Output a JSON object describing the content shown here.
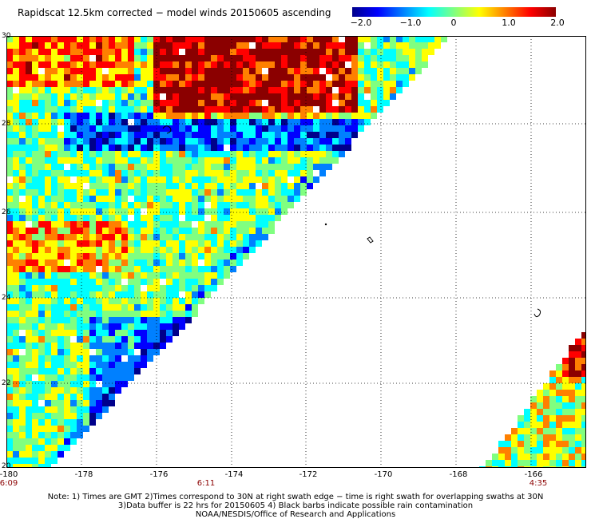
{
  "title": "Rapidscat 12.5km corrected − model winds 20150605 ascending",
  "colorbar": {
    "labels": [
      "−2.0",
      "−1.0",
      "0",
      "1.0",
      "2.0"
    ],
    "values": [
      -2.0,
      -1.0,
      0,
      1.0,
      2.0
    ],
    "colors": [
      "#00008b",
      "#0000ff",
      "#0080ff",
      "#00ffff",
      "#80ff80",
      "#ffff00",
      "#ff8000",
      "#ff0000",
      "#8b0000"
    ]
  },
  "map": {
    "lon_range": [
      -180,
      -164.5
    ],
    "lat_range": [
      20,
      30
    ],
    "x_tick_labels": [
      "-180",
      "-178",
      "-176",
      "-174",
      "-172",
      "-170",
      "-168",
      "-166"
    ],
    "y_tick_labels": [
      "30",
      "28",
      "26",
      "24",
      "22",
      "20"
    ],
    "gridlines": true
  },
  "times": [
    {
      "label": "6:09",
      "lon": -180
    },
    {
      "label": "6:11",
      "lon": -175
    },
    {
      "label": "4:35",
      "lon": -166.5
    }
  ],
  "notes": [
    "Note: 1) Times are GMT 2)Times correspond to 30N at right swath edge − time is right swath for overlapping swaths at 30N",
    "3)Data buffer is 22 hrs for 20150605 4) Black barbs indicate possible rain contamination",
    "NOAA/NESDIS/Office of Research and Applications"
  ]
}
